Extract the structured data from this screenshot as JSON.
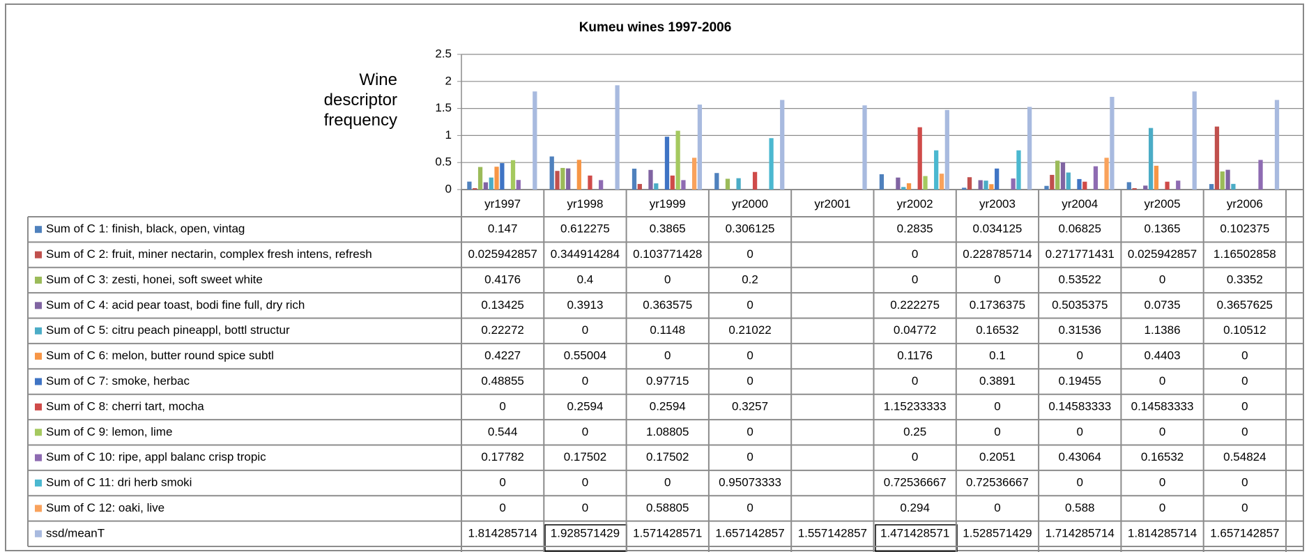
{
  "chart_data": {
    "type": "bar",
    "title": "Kumeu wines 1997-2006",
    "y_label": "Wine descriptor frequency",
    "categories": [
      "yr1997",
      "yr1998",
      "yr1999",
      "yr2000",
      "yr2001",
      "yr2002",
      "yr2003",
      "yr2004",
      "yr2005",
      "yr2006"
    ],
    "ylim": [
      0,
      2.5
    ],
    "yticks": [
      0,
      0.5,
      1,
      1.5,
      2,
      2.5
    ],
    "grid": true,
    "series": [
      {
        "name": "Sum of C 1: finish, black, open, vintag",
        "color": "#4f81bd",
        "values": [
          0.147,
          0.612275,
          0.3865,
          0.306125,
          null,
          0.2835,
          0.034125,
          0.06825,
          0.1365,
          0.102375
        ]
      },
      {
        "name": "Sum of C 2: fruit, miner nectarin, complex fresh intens, refresh",
        "color": "#c0504d",
        "values": [
          0.025942857,
          0.344914284,
          0.103771428,
          0,
          null,
          0,
          0.228785714,
          0.271771431,
          0.025942857,
          1.16502858
        ]
      },
      {
        "name": "Sum of C 3: zesti, honei, soft sweet white",
        "color": "#9bbb59",
        "values": [
          0.4176,
          0.4,
          0,
          0.2,
          null,
          0,
          0,
          0.53522,
          0,
          0.3352
        ]
      },
      {
        "name": "Sum of C 4: acid pear toast, bodi fine full, dry rich",
        "color": "#8064a2",
        "values": [
          0.13425,
          0.3913,
          0.363575,
          0,
          null,
          0.222275,
          0.1736375,
          0.5035375,
          0.0735,
          0.3657625
        ]
      },
      {
        "name": "Sum of C 5: citru peach pineappl, bottl structur",
        "color": "#4bacc6",
        "values": [
          0.22272,
          0,
          0.1148,
          0.21022,
          null,
          0.04772,
          0.16532,
          0.31536,
          1.1386,
          0.10512
        ]
      },
      {
        "name": "Sum of C 6: melon, butter round spice subtl",
        "color": "#f79646",
        "values": [
          0.4227,
          0.55004,
          0,
          0,
          null,
          0.1176,
          0.1,
          0,
          0.4403,
          0
        ]
      },
      {
        "name": "Sum of C 7: smoke, herbac",
        "color": "#3f74c4",
        "values": [
          0.48855,
          0,
          0.97715,
          0,
          null,
          0,
          0.3891,
          0.19455,
          0,
          0
        ]
      },
      {
        "name": "Sum of C 8: cherri tart, mocha",
        "color": "#cf4b49",
        "values": [
          0,
          0.2594,
          0.2594,
          0.3257,
          null,
          1.15233333,
          0,
          0.14583333,
          0.14583333,
          0
        ]
      },
      {
        "name": "Sum of C 9: lemon, lime",
        "color": "#a5c95f",
        "values": [
          0.544,
          0,
          1.08805,
          0,
          null,
          0.25,
          0,
          0,
          0,
          0
        ]
      },
      {
        "name": "Sum of C 10: ripe, appl balanc crisp tropic",
        "color": "#8e6bb2",
        "values": [
          0.17782,
          0.17502,
          0.17502,
          0,
          null,
          0,
          0.2051,
          0.43064,
          0.16532,
          0.54824
        ]
      },
      {
        "name": "Sum of C 11: dri herb smoki",
        "color": "#4bb8d0",
        "values": [
          0,
          0,
          0,
          0.95073333,
          null,
          0.72536667,
          0.72536667,
          0,
          0,
          0
        ]
      },
      {
        "name": "Sum of C 12: oaki, live",
        "color": "#f9a25c",
        "values": [
          0,
          0,
          0.58805,
          0,
          null,
          0.294,
          0,
          0.588,
          0,
          0
        ]
      },
      {
        "name": "ssd/meanT",
        "color": "#a8badf",
        "values": [
          1.814285714,
          1.928571429,
          1.571428571,
          1.657142857,
          1.557142857,
          1.471428571,
          1.528571429,
          1.714285714,
          1.814285714,
          1.657142857
        ]
      }
    ]
  }
}
